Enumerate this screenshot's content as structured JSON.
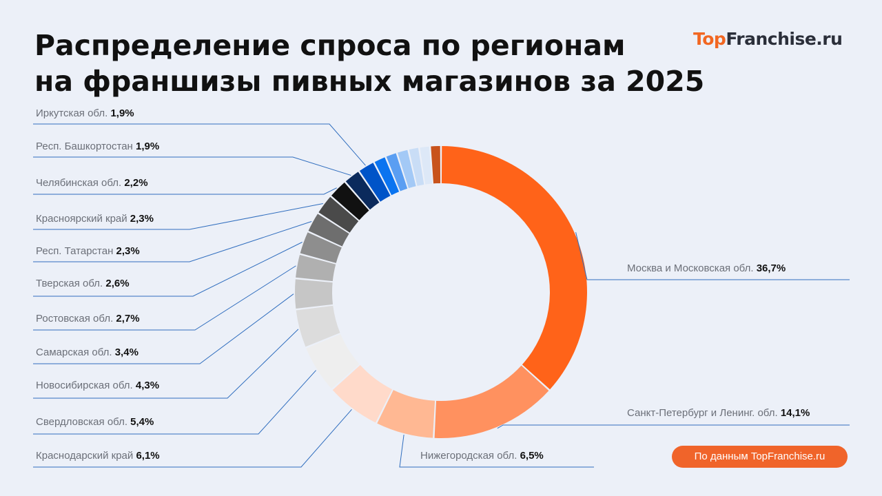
{
  "title_line1": "Распределение спроса по регионам",
  "title_line2": "на франшизы пивных магазинов за 2025",
  "logo": {
    "part1": "Top",
    "part2": "Franchise.ru"
  },
  "source": "По данным TopFranchise.ru",
  "chart_data": {
    "type": "pie",
    "variant": "donut",
    "start": "top, clockwise",
    "slices": [
      {
        "label": "Москва и Московская обл.",
        "value": 36.7,
        "value_text": "36,7%",
        "color": "#FF6319"
      },
      {
        "label": "Санкт-Петербург и Ленинг. обл.",
        "value": 14.1,
        "value_text": "14,1%",
        "color": "#FF915F"
      },
      {
        "label": "Нижегородская обл.",
        "value": 6.5,
        "value_text": "6,5%",
        "color": "#FFB893"
      },
      {
        "label": "Краснодарский край",
        "value": 6.1,
        "value_text": "6,1%",
        "color": "#FFDACA"
      },
      {
        "label": "Свердловская обл.",
        "value": 5.4,
        "value_text": "5,4%",
        "color": "#EEEEEE"
      },
      {
        "label": "Новосибирская обл.",
        "value": 4.3,
        "value_text": "4,3%",
        "color": "#DCDCDC"
      },
      {
        "label": "Самарская обл.",
        "value": 3.4,
        "value_text": "3,4%",
        "color": "#C6C6C6"
      },
      {
        "label": "Ростовская обл.",
        "value": 2.7,
        "value_text": "2,7%",
        "color": "#B0B0B0"
      },
      {
        "label": "Тверская обл.",
        "value": 2.6,
        "value_text": "2,6%",
        "color": "#8E8E8E"
      },
      {
        "label": "Респ. Татарстан",
        "value": 2.3,
        "value_text": "2,3%",
        "color": "#6E6E6E"
      },
      {
        "label": "Красноярский край",
        "value": 2.3,
        "value_text": "2,3%",
        "color": "#4A4A4A"
      },
      {
        "label": "Челябинская обл.",
        "value": 2.2,
        "value_text": "2,2%",
        "color": "#111111"
      },
      {
        "label": "Респ. Башкортостан",
        "value": 1.9,
        "value_text": "1,9%",
        "color": "#0B2A5C"
      },
      {
        "label": "Иркутская обл.",
        "value": 1.9,
        "value_text": "1,9%",
        "color": "#0054C8"
      },
      {
        "label": "",
        "value": 1.4,
        "color": "#0A74F0"
      },
      {
        "label": "",
        "value": 1.3,
        "color": "#5A9EF2"
      },
      {
        "label": "",
        "value": 1.3,
        "color": "#A3C9F6"
      },
      {
        "label": "",
        "value": 1.2,
        "color": "#C9DDF6"
      },
      {
        "label": "",
        "value": 1.2,
        "color": "#DDE8F7"
      },
      {
        "label": "",
        "value": 1.2,
        "color": "#C8531C"
      }
    ],
    "leader_line_color": "#2F6DBE",
    "background": "#ECF0F8"
  }
}
